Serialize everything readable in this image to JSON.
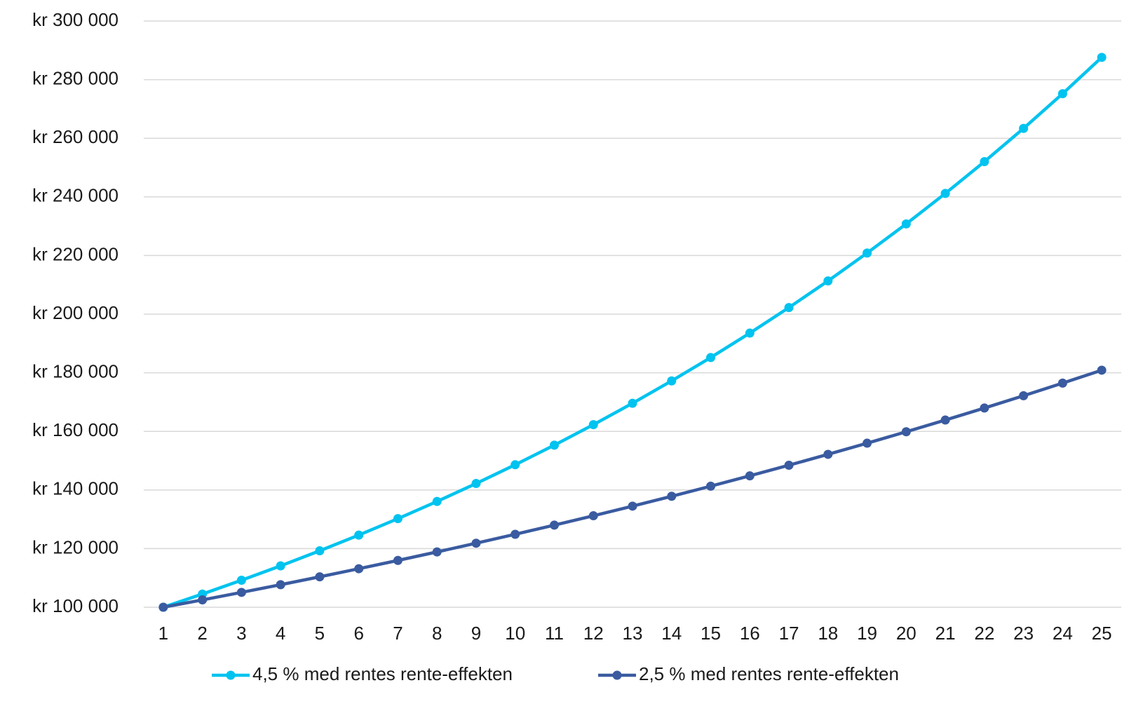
{
  "chart_data": {
    "type": "line",
    "categories": [
      "1",
      "2",
      "3",
      "4",
      "5",
      "6",
      "7",
      "8",
      "9",
      "10",
      "11",
      "12",
      "13",
      "14",
      "15",
      "16",
      "17",
      "18",
      "19",
      "20",
      "21",
      "22",
      "23",
      "24",
      "25"
    ],
    "series": [
      {
        "name": "4,5 % med rentes rente-effekten",
        "color": "#00c3ef",
        "values": [
          100000,
          104500,
          109203,
          114117,
          119252,
          124618,
          130226,
          136086,
          142210,
          148610,
          155297,
          162285,
          169588,
          177220,
          185194,
          193528,
          202237,
          211338,
          220848,
          230786,
          241171,
          252024,
          263365,
          275217,
          287601
        ]
      },
      {
        "name": "2,5 % med rentes rente-effekten",
        "color": "#3a5ba0",
        "values": [
          100000,
          102500,
          105063,
          107689,
          110381,
          113141,
          115969,
          118869,
          121840,
          124886,
          128008,
          131209,
          134489,
          137851,
          141297,
          144830,
          148451,
          152162,
          155966,
          159865,
          163862,
          167958,
          172157,
          176461,
          180873
        ]
      }
    ],
    "ylim": [
      100000,
      300000
    ],
    "yticks": [
      {
        "value": 100000,
        "label": "kr 100 000"
      },
      {
        "value": 120000,
        "label": "kr 120 000"
      },
      {
        "value": 140000,
        "label": "kr 140 000"
      },
      {
        "value": 160000,
        "label": "kr 160 000"
      },
      {
        "value": 180000,
        "label": "kr 180 000"
      },
      {
        "value": 200000,
        "label": "kr 200 000"
      },
      {
        "value": 220000,
        "label": "kr 220 000"
      },
      {
        "value": 240000,
        "label": "kr 240 000"
      },
      {
        "value": 260000,
        "label": "kr 260 000"
      },
      {
        "value": 280000,
        "label": "kr 280 000"
      },
      {
        "value": 300000,
        "label": "kr 300 000"
      }
    ],
    "grid": true,
    "legend": "bottom"
  }
}
